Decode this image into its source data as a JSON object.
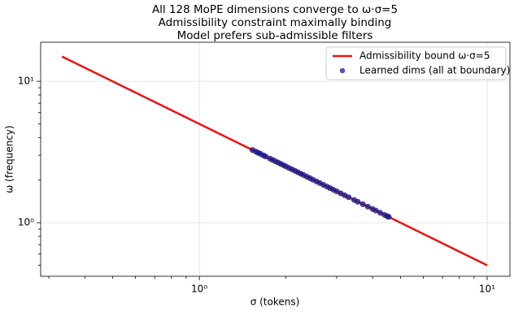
{
  "chart_data": {
    "type": "scatter",
    "title": [
      "All 128 MoPE dimensions converge to ω·σ=5",
      "Admissibility constraint maximally binding",
      "Model prefers sub-admissible filters"
    ],
    "xlabel": "σ (tokens)",
    "ylabel": "ω (frequency)",
    "xscale": "log",
    "yscale": "log",
    "xlim": [
      0.281,
      12.0
    ],
    "ylim": [
      0.418,
      18.9
    ],
    "xticks": [
      {
        "value": 1,
        "label": "10⁰"
      },
      {
        "value": 10,
        "label": "10¹"
      }
    ],
    "yticks": [
      {
        "value": 1,
        "label": "10⁰"
      },
      {
        "value": 10,
        "label": "10¹"
      }
    ],
    "xminorticks": [
      0.3,
      0.4,
      0.5,
      0.6,
      0.7,
      0.8,
      0.9,
      2,
      3,
      4,
      5,
      6,
      7,
      8,
      9
    ],
    "yminorticks": [
      0.5,
      0.6,
      0.7,
      0.8,
      0.9,
      2,
      3,
      4,
      5,
      6,
      7,
      8,
      9
    ],
    "grid": true,
    "legend": "upper right",
    "series": [
      {
        "name": "Admissibility bound ω·σ=5",
        "type": "line",
        "color": "#ee1111",
        "x": [
          0.333,
          10
        ],
        "values": [
          15,
          0.5
        ]
      },
      {
        "name": "Learned dims (all at boundary)",
        "type": "scatter",
        "color": "#1a1a8a",
        "x": [
          1.53,
          1.57,
          1.6,
          1.63,
          1.67,
          1.7,
          1.76,
          1.8,
          1.84,
          1.88,
          1.92,
          1.96,
          2.0,
          2.05,
          2.1,
          2.15,
          2.2,
          2.25,
          2.3,
          2.36,
          2.42,
          2.48,
          2.55,
          2.62,
          2.7,
          2.78,
          2.85,
          2.92,
          3.0,
          3.1,
          3.2,
          3.3,
          3.45,
          3.55,
          3.7,
          3.85,
          4.0,
          4.1,
          4.25,
          4.4,
          4.5,
          4.55
        ],
        "values": [
          3.268,
          3.185,
          3.125,
          3.067,
          2.994,
          2.941,
          2.841,
          2.778,
          2.717,
          2.66,
          2.604,
          2.551,
          2.5,
          2.439,
          2.381,
          2.326,
          2.273,
          2.222,
          2.174,
          2.119,
          2.066,
          2.016,
          1.961,
          1.908,
          1.852,
          1.799,
          1.754,
          1.712,
          1.667,
          1.613,
          1.563,
          1.515,
          1.449,
          1.408,
          1.351,
          1.299,
          1.25,
          1.22,
          1.176,
          1.136,
          1.111,
          1.099
        ]
      }
    ]
  }
}
